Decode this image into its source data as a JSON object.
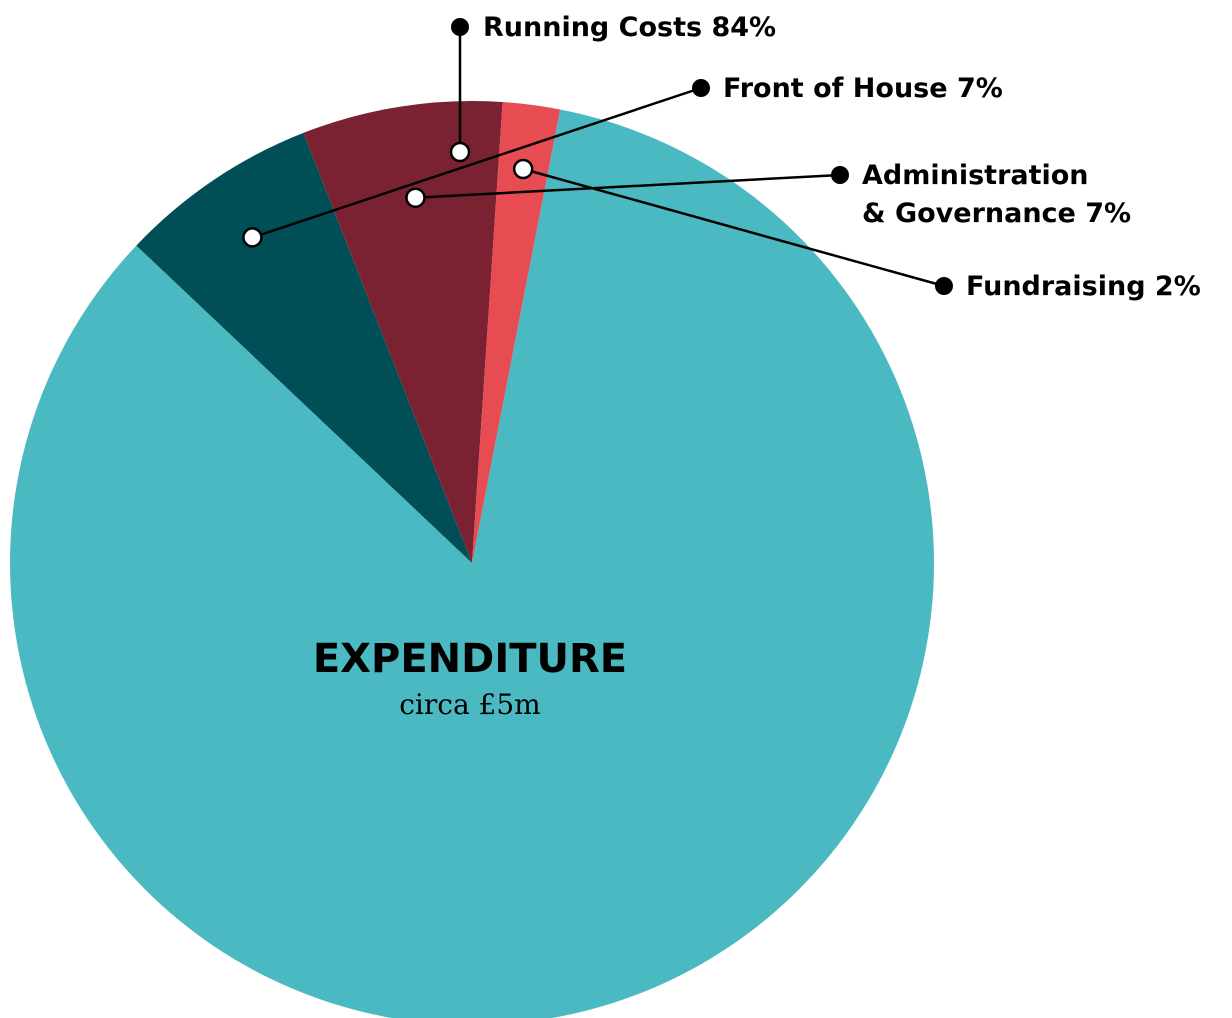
{
  "chart_data": {
    "type": "pie",
    "title": "EXPENDITURE",
    "subtitle": "circa £5m",
    "start_angle_deg": 11,
    "slices": [
      {
        "label_lines": [
          "Running Costs 84%"
        ],
        "value": 84,
        "color": "#4bb9c1"
      },
      {
        "label_lines": [
          "Front of House 7%"
        ],
        "value": 7,
        "color": "#004f56"
      },
      {
        "label_lines": [
          "Administration",
          "& Governance 7%"
        ],
        "value": 7,
        "color": "#7a2231"
      },
      {
        "label_lines": [
          "Fundraising 2%"
        ],
        "value": 2,
        "color": "#e84c53"
      }
    ]
  }
}
